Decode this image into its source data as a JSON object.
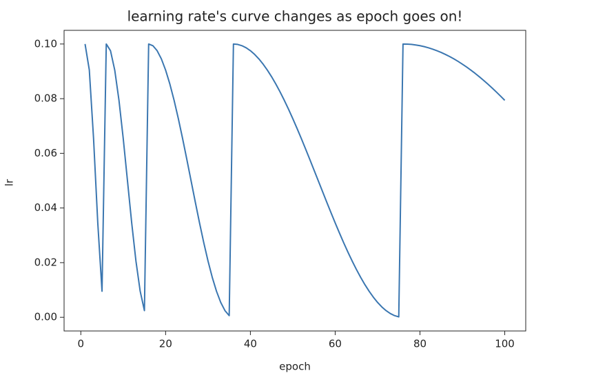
{
  "chart_data": {
    "type": "line",
    "title": "learning rate's curve changes as epoch goes on!",
    "x_label": "epoch",
    "y_label": "lr",
    "x": [
      1,
      2,
      3,
      4,
      5,
      6,
      7,
      8,
      9,
      10,
      11,
      12,
      13,
      14,
      15,
      16,
      17,
      18,
      19,
      20,
      21,
      22,
      23,
      24,
      25,
      26,
      27,
      28,
      29,
      30,
      31,
      32,
      33,
      34,
      35,
      36,
      37,
      38,
      39,
      40,
      41,
      42,
      43,
      44,
      45,
      46,
      47,
      48,
      49,
      50,
      51,
      52,
      53,
      54,
      55,
      56,
      57,
      58,
      59,
      60,
      61,
      62,
      63,
      64,
      65,
      66,
      67,
      68,
      69,
      70,
      71,
      72,
      73,
      74,
      75,
      76,
      77,
      78,
      79,
      80,
      81,
      82,
      83,
      84,
      85,
      86,
      87,
      88,
      89,
      90,
      91,
      92,
      93,
      94,
      95,
      96,
      97,
      98,
      99,
      100
    ],
    "series": [
      {
        "color": "#3a76b0",
        "values": [
          0.1,
          0.0905,
          0.0655,
          0.0345,
          0.00955,
          0.1,
          0.09755,
          0.09045,
          0.07939,
          0.06545,
          0.05,
          0.03455,
          0.02061,
          0.00955,
          0.00245,
          0.1,
          0.09938,
          0.09755,
          0.09455,
          0.09045,
          0.08536,
          0.07939,
          0.0727,
          0.06545,
          0.05782,
          0.05,
          0.04218,
          0.03455,
          0.0273,
          0.02061,
          0.01464,
          0.00955,
          0.00545,
          0.00245,
          0.00062,
          0.1,
          0.09985,
          0.09938,
          0.09862,
          0.09755,
          0.09619,
          0.09455,
          0.09263,
          0.09045,
          0.08802,
          0.08536,
          0.08247,
          0.07939,
          0.07612,
          0.0727,
          0.06913,
          0.06545,
          0.06167,
          0.05782,
          0.05392,
          0.05,
          0.04608,
          0.04218,
          0.03833,
          0.03455,
          0.03087,
          0.0273,
          0.02388,
          0.02061,
          0.01753,
          0.01464,
          0.01198,
          0.00955,
          0.00737,
          0.00545,
          0.00381,
          0.00245,
          0.00138,
          0.00062,
          0.00015,
          0.1,
          0.09996,
          0.09985,
          0.09965,
          0.09938,
          0.09904,
          0.09862,
          0.09812,
          0.09755,
          0.09691,
          0.09619,
          0.09541,
          0.09455,
          0.09363,
          0.09263,
          0.09157,
          0.09045,
          0.08927,
          0.08802,
          0.08672,
          0.08536,
          0.08394,
          0.08247,
          0.08095,
          0.07939
        ]
      }
    ],
    "xlim": [
      -3.95,
      104.95
    ],
    "ylim": [
      -0.005,
      0.105
    ],
    "xticks": [
      0,
      20,
      40,
      60,
      80,
      100
    ],
    "yticks": [
      {
        "value": 0,
        "label": "0.00"
      },
      {
        "value": 0.02,
        "label": "0.02"
      },
      {
        "value": 0.04,
        "label": "0.04"
      },
      {
        "value": 0.06,
        "label": "0.06"
      },
      {
        "value": 0.08,
        "label": "0.08"
      },
      {
        "value": 0.1,
        "label": "0.10"
      }
    ],
    "grid": false
  }
}
